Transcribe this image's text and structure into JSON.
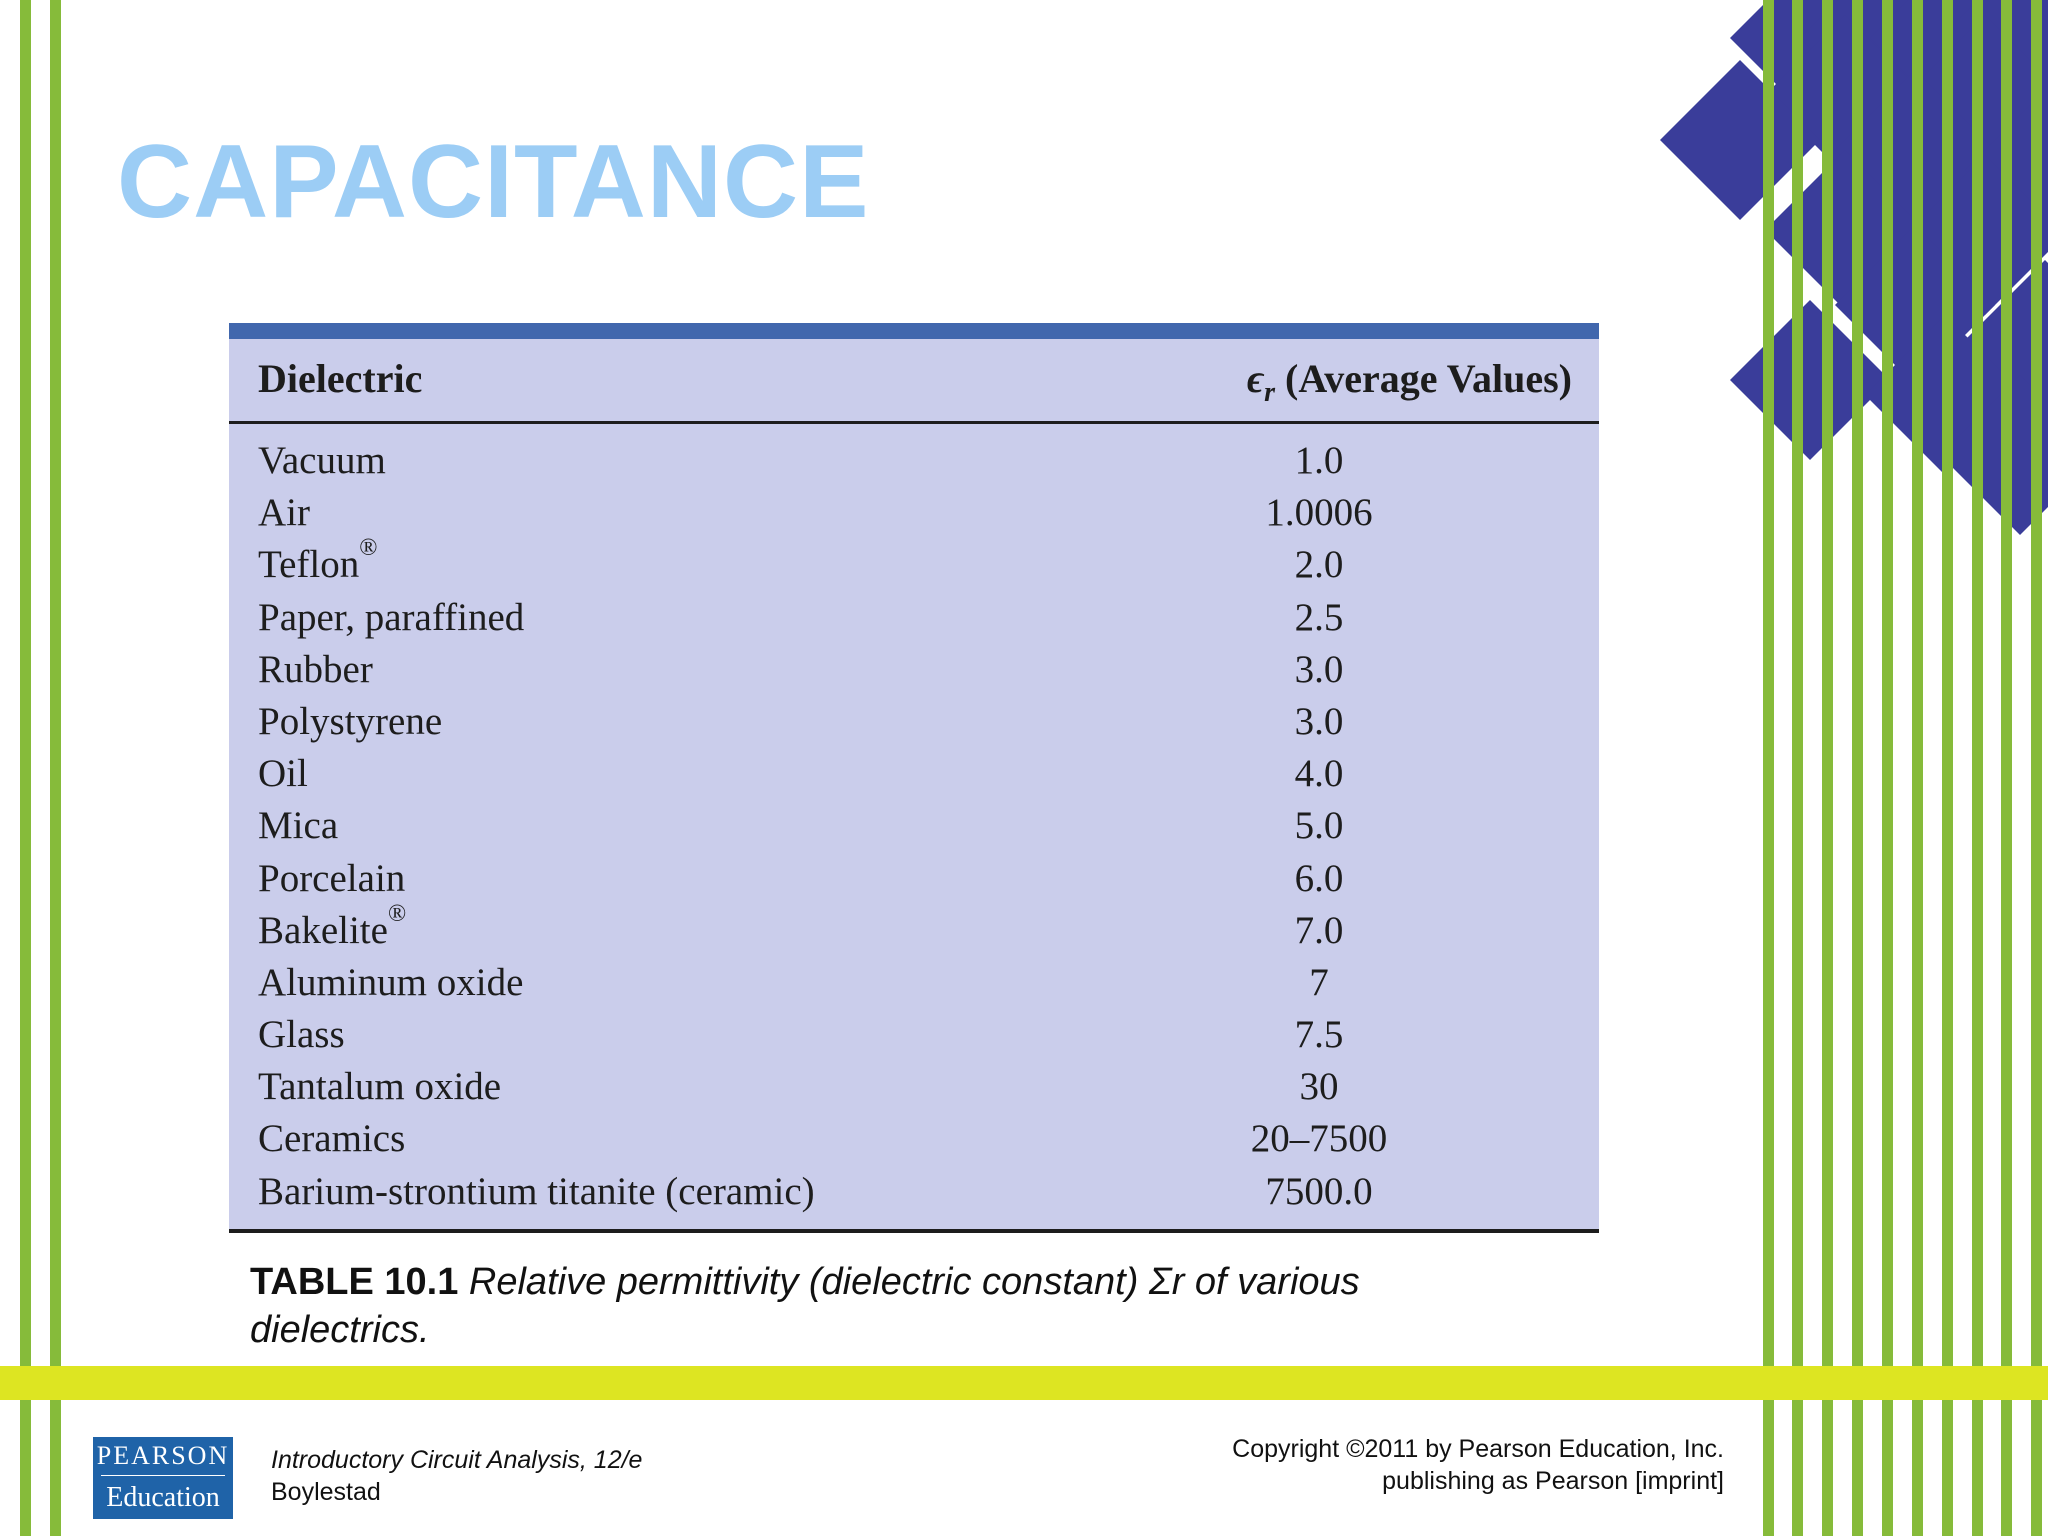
{
  "colors": {
    "stripe_green": "#86bb3a",
    "band_yellow": "#dde522",
    "title_blue": "#9ccdf5",
    "table_fill": "#cacdeb",
    "table_topbar": "#4167ad",
    "diamond_navy": "#3a3d9a",
    "logo_blue": "#1f63a8"
  },
  "slide": {
    "title": "CAPACITANCE"
  },
  "table": {
    "header": {
      "dielectric": "Dielectric",
      "epsilon_symbol": "ϵ",
      "epsilon_sub": "r",
      "average_label": " (Average Values)"
    },
    "rows": [
      {
        "name": "Vacuum",
        "sup": "",
        "value": "1.0"
      },
      {
        "name": "Air",
        "sup": "",
        "value": "1.0006"
      },
      {
        "name": "Teflon",
        "sup": "®",
        "value": "2.0"
      },
      {
        "name": "Paper, paraffined",
        "sup": "",
        "value": "2.5"
      },
      {
        "name": "Rubber",
        "sup": "",
        "value": "3.0"
      },
      {
        "name": "Polystyrene",
        "sup": "",
        "value": "3.0"
      },
      {
        "name": "Oil",
        "sup": "",
        "value": "4.0"
      },
      {
        "name": "Mica",
        "sup": "",
        "value": "5.0"
      },
      {
        "name": "Porcelain",
        "sup": "",
        "value": "6.0"
      },
      {
        "name": "Bakelite",
        "sup": "®",
        "value": "7.0"
      },
      {
        "name": "Aluminum oxide",
        "sup": "",
        "value": "7"
      },
      {
        "name": "Glass",
        "sup": "",
        "value": "7.5"
      },
      {
        "name": "Tantalum oxide",
        "sup": "",
        "value": "30"
      },
      {
        "name": "Ceramics",
        "sup": "",
        "value": "20–7500"
      },
      {
        "name": "Barium-strontium titanite (ceramic)",
        "sup": "",
        "value": "7500.0"
      }
    ]
  },
  "caption": {
    "label": "TABLE 10.1",
    "text": " Relative permittivity (dielectric constant) Σr of various dielectrics."
  },
  "footer": {
    "logo_top": "PEARSON",
    "logo_bottom": "Education",
    "book_title": "Introductory Circuit Analysis, 12/e",
    "book_author": "Boylestad",
    "copyright_line1": "Copyright ©2011 by Pearson Education, Inc.",
    "copyright_line2": "publishing as Pearson [imprint]"
  }
}
